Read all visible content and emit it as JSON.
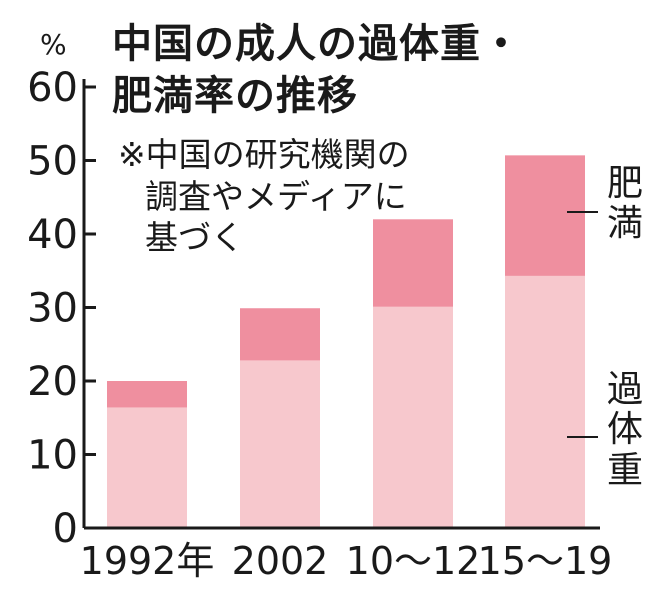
{
  "title_lines": [
    "中国の成人の過体重・",
    "肥満率の推移"
  ],
  "note_lines": [
    "※中国の研究機関の",
    "調査やメディアに",
    "基づく"
  ],
  "unit": "%",
  "colors": {
    "overweight": "#f7c8cd",
    "obese": "#ef8f9f",
    "axis": "#1a1a1a"
  },
  "chart_data": {
    "type": "bar",
    "stacked": true,
    "categories": [
      "1992年",
      "2002",
      "10〜12",
      "15〜19"
    ],
    "series": [
      {
        "name": "過体重",
        "values": [
          16.4,
          22.8,
          30.1,
          34.3
        ]
      },
      {
        "name": "肥満",
        "values": [
          3.6,
          7.1,
          11.9,
          16.4
        ]
      }
    ],
    "ylim": [
      0,
      60
    ],
    "yticks": [
      "0",
      "10",
      "20",
      "30",
      "40",
      "50",
      "60"
    ],
    "ylabel": "%",
    "legend": [
      "肥満",
      "過体重"
    ]
  }
}
